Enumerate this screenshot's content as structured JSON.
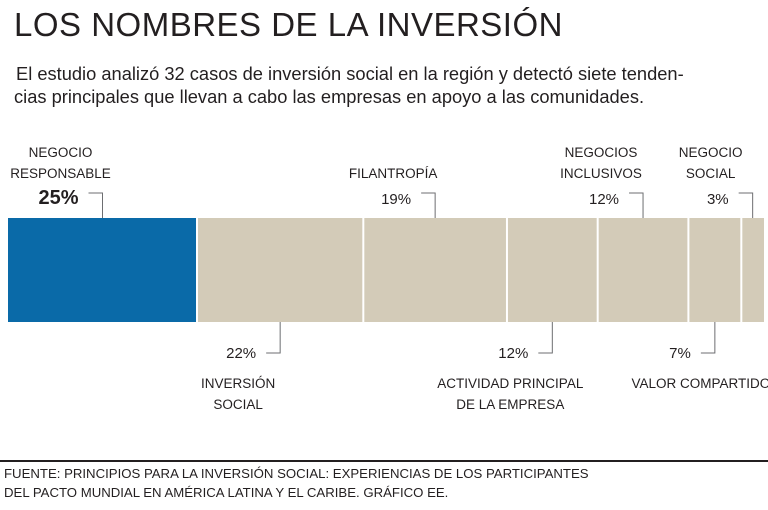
{
  "header": {
    "title": "LOS NOMBRES DE LA INVERSIÓN",
    "subtitle_line1": "El estudio analizó 32 casos de inversión social en la región y detectó siete tenden-",
    "subtitle_line2": "cias principales que llevan a cabo las empresas en apoyo a las comunidades."
  },
  "footer": {
    "line1": "FUENTE: PRINCIPIOS PARA LA INVERSIÓN SOCIAL: EXPERIENCIAS DE LOS PARTICIPANTES",
    "line2": "DEL PACTO MUNDIAL EN AMÉRICA LATINA Y EL CARIBE. GRÁFICO EE."
  },
  "colors": {
    "highlight": "#0a6aa8",
    "segment": "#d3cbb8",
    "divider": "#ffffff",
    "text": "#231f20",
    "leader": "#6d6e71"
  },
  "chart_data": {
    "type": "bar",
    "orientation": "horizontal-stacked-100",
    "categories": [
      "NEGOCIO RESPONSABLE",
      "INVERSIÓN SOCIAL",
      "FILANTROPÍA",
      "ACTIVIDAD PRINCIPAL DE LA EMPRESA",
      "NEGOCIOS INCLUSIVOS",
      "VALOR COMPARTIDO",
      "NEGOCIO SOCIAL"
    ],
    "values": [
      25,
      22,
      19,
      12,
      12,
      7,
      3
    ],
    "value_labels": [
      "25%",
      "22%",
      "19%",
      "12%",
      "12%",
      "7%",
      "3%"
    ],
    "label_lines": [
      [
        "NEGOCIO",
        "RESPONSABLE"
      ],
      [
        "INVERSIÓN",
        "SOCIAL"
      ],
      [
        "FILANTROPÍA"
      ],
      [
        "ACTIVIDAD PRINCIPAL",
        "DE LA EMPRESA"
      ],
      [
        "NEGOCIOS",
        "INCLUSIVOS"
      ],
      [
        "VALOR COMPARTIDO"
      ],
      [
        "NEGOCIO",
        "SOCIAL"
      ]
    ],
    "label_side": [
      "top",
      "bottom",
      "top",
      "bottom",
      "top",
      "bottom",
      "top"
    ],
    "highlighted_index": 0,
    "unit": "%"
  }
}
